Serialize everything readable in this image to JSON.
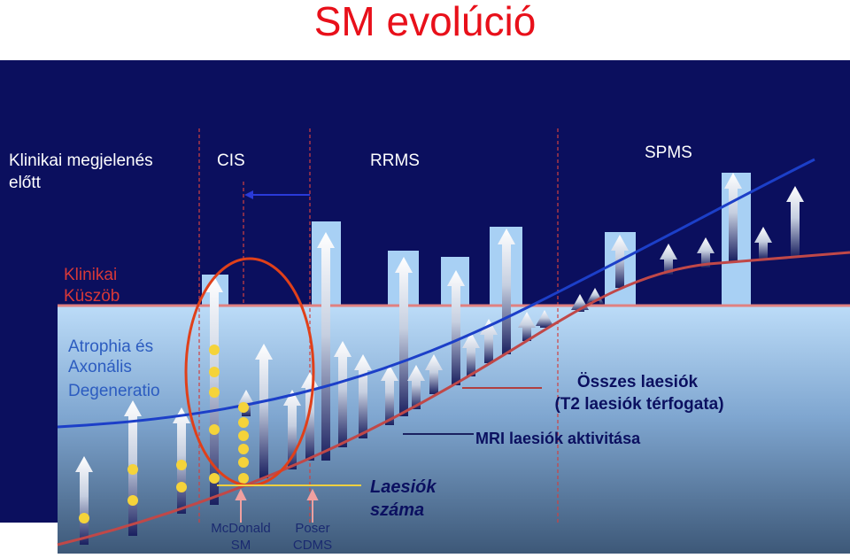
{
  "title": "SM evolúció",
  "phases": {
    "preclinical": [
      "Klinikai megjelenés",
      "előtt"
    ],
    "cis": "CIS",
    "rrms": "RRMS",
    "spms": "SPMS"
  },
  "threshold": [
    "Klinikai",
    "Küszöb"
  ],
  "atrophy": [
    "Atrophia és",
    "Axonális",
    "Degeneratio"
  ],
  "total_lesions": [
    "Összes laesiók",
    "(T2 laesiók térfogata)"
  ],
  "mri_activity": "MRI laesiók aktivitása",
  "lesion_count": [
    "Laesiók",
    "száma"
  ],
  "mcdonald": [
    "McDonald",
    "SM"
  ],
  "poser": [
    "Poser",
    "CDMS"
  ]
}
